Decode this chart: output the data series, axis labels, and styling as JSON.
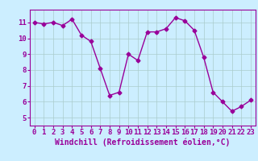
{
  "x": [
    0,
    1,
    2,
    3,
    4,
    5,
    6,
    7,
    8,
    9,
    10,
    11,
    12,
    13,
    14,
    15,
    16,
    17,
    18,
    19,
    20,
    21,
    22,
    23
  ],
  "y": [
    11.0,
    10.9,
    11.0,
    10.8,
    11.2,
    10.2,
    9.8,
    8.1,
    6.4,
    6.6,
    9.0,
    8.6,
    10.4,
    10.4,
    10.6,
    11.3,
    11.1,
    10.5,
    8.8,
    6.6,
    6.0,
    5.4,
    5.7,
    6.1
  ],
  "line_color": "#990099",
  "marker": "D",
  "markersize": 2.5,
  "linewidth": 1.0,
  "xlabel": "Windchill (Refroidissement éolien,°C)",
  "xlabel_fontsize": 7,
  "xlim": [
    -0.5,
    23.5
  ],
  "ylim": [
    4.5,
    11.8
  ],
  "yticks": [
    5,
    6,
    7,
    8,
    9,
    10,
    11
  ],
  "xticks": [
    0,
    1,
    2,
    3,
    4,
    5,
    6,
    7,
    8,
    9,
    10,
    11,
    12,
    13,
    14,
    15,
    16,
    17,
    18,
    19,
    20,
    21,
    22,
    23
  ],
  "background_color": "#cceeff",
  "grid_color": "#aacccc",
  "tick_label_color": "#990099",
  "spine_color": "#990099",
  "tick_fontsize": 6.5
}
